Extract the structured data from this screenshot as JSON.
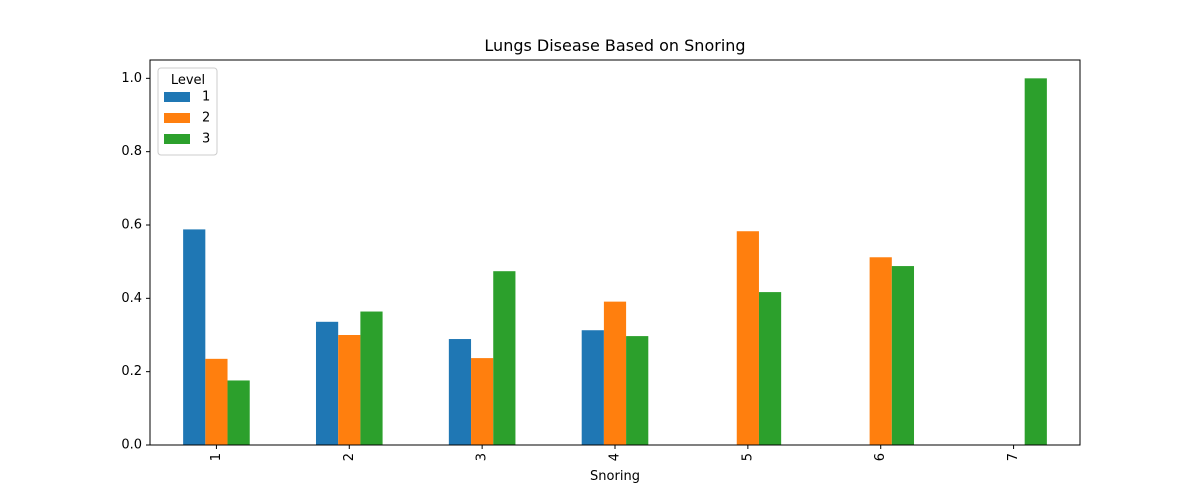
{
  "chart_data": {
    "type": "bar",
    "title": "Lungs Disease Based on Snoring",
    "xlabel": "Snoring",
    "ylabel": "",
    "categories": [
      "1",
      "2",
      "3",
      "4",
      "5",
      "6",
      "7"
    ],
    "ylim": [
      0,
      1.05
    ],
    "yticks": [
      0.0,
      0.2,
      0.4,
      0.6,
      0.8,
      1.0
    ],
    "ytick_labels": [
      "0.0",
      "0.2",
      "0.4",
      "0.6",
      "0.8",
      "1.0"
    ],
    "legend": {
      "title": "Level",
      "placement": "top-left"
    },
    "series": [
      {
        "name": "1",
        "color": "#1f77b4",
        "values": [
          0.588,
          0.336,
          0.289,
          0.313,
          0,
          0,
          0
        ]
      },
      {
        "name": "2",
        "color": "#ff7f0e",
        "values": [
          0.235,
          0.3,
          0.237,
          0.391,
          0.583,
          0.512,
          0
        ]
      },
      {
        "name": "3",
        "color": "#2ca02c",
        "values": [
          0.176,
          0.364,
          0.474,
          0.297,
          0.417,
          0.488,
          1.0
        ]
      }
    ],
    "grid": false
  }
}
